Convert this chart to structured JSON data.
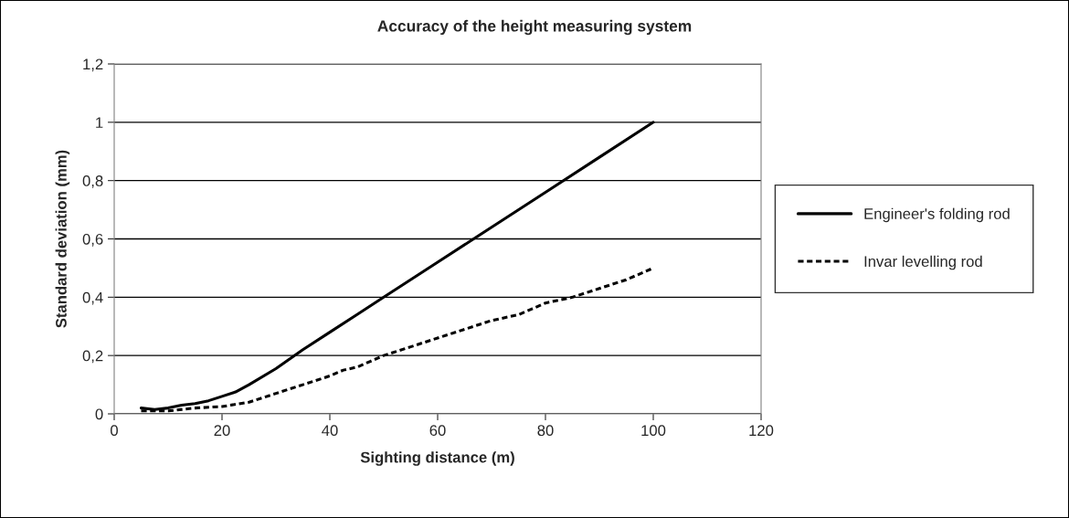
{
  "chart_data": {
    "type": "line",
    "title": "Accuracy of the height measuring system",
    "xlabel": "Sighting distance (m)",
    "ylabel": "Standard deviation (mm)",
    "xlim": [
      0,
      120
    ],
    "xticks": [
      0,
      20,
      40,
      60,
      80,
      100,
      120
    ],
    "ylim": [
      0,
      1.2
    ],
    "yticks": [
      0,
      {
        "value": 0.2,
        "label": "0,2"
      },
      {
        "value": 0.4,
        "label": "0,4"
      },
      {
        "value": 0.6,
        "label": "0,6"
      },
      {
        "value": 0.8,
        "label": "0,8"
      },
      1,
      {
        "value": 1.2,
        "label": "1,2"
      }
    ],
    "grid": "y",
    "legend": "right",
    "marker": "none",
    "series": [
      {
        "name": "Engineer's folding rod",
        "color": "#000000",
        "line_style": "solid",
        "x": [
          5,
          7.5,
          10,
          12.5,
          15,
          17.5,
          20,
          22.5,
          25,
          30,
          35,
          40,
          45,
          50,
          60,
          70,
          80,
          90,
          100
        ],
        "values": [
          0.02,
          0.015,
          0.02,
          0.03,
          0.035,
          0.045,
          0.06,
          0.075,
          0.1,
          0.155,
          0.22,
          0.28,
          0.34,
          0.4,
          0.52,
          0.64,
          0.76,
          0.88,
          1.0
        ]
      },
      {
        "name": "Invar levelling rod",
        "color": "#000000",
        "line_style": "dashed",
        "x": [
          5,
          7.5,
          10,
          15,
          20,
          25,
          30,
          35,
          40,
          42.5,
          45,
          47.5,
          50,
          55,
          60,
          65,
          70,
          75,
          77.5,
          80,
          85,
          90,
          95,
          100
        ],
        "values": [
          0.01,
          0.01,
          0.01,
          0.02,
          0.025,
          0.04,
          0.07,
          0.1,
          0.13,
          0.15,
          0.16,
          0.18,
          0.2,
          0.23,
          0.26,
          0.29,
          0.32,
          0.34,
          0.36,
          0.38,
          0.4,
          0.43,
          0.46,
          0.5
        ]
      }
    ]
  }
}
